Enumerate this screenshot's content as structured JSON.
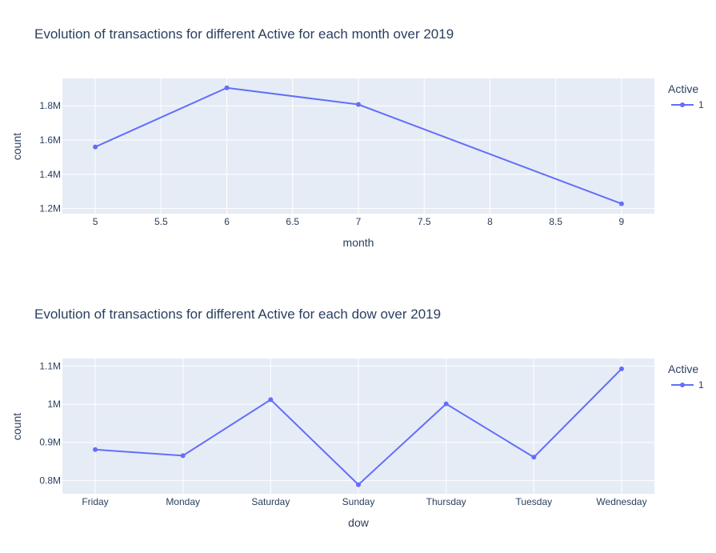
{
  "chart_data": [
    {
      "type": "line",
      "title": "Evolution of transactions for different Active for each month over 2019",
      "xlabel": "month",
      "ylabel": "count",
      "x": [
        5,
        6,
        7,
        9
      ],
      "xlim": [
        4.75,
        9.25
      ],
      "xticks": [
        5,
        5.5,
        6,
        6.5,
        7,
        7.5,
        8,
        8.5,
        9
      ],
      "xtick_labels": [
        "5",
        "5.5",
        "6",
        "6.5",
        "7",
        "7.5",
        "8",
        "8.5",
        "9"
      ],
      "ylim": [
        1170000,
        1960000
      ],
      "yticks": [
        1200000,
        1400000,
        1600000,
        1800000
      ],
      "ytick_labels": [
        "1.2M",
        "1.4M",
        "1.6M",
        "1.8M"
      ],
      "series": [
        {
          "name": "1",
          "color": "#636efa",
          "values": [
            1560000,
            1905000,
            1808000,
            1228000
          ]
        }
      ],
      "legend": {
        "title": "Active",
        "placement": "top-right"
      },
      "grid": true
    },
    {
      "type": "line",
      "title": "Evolution of transactions for different Active for each dow over 2019",
      "xlabel": "dow",
      "ylabel": "count",
      "categories": [
        "Friday",
        "Monday",
        "Saturday",
        "Sunday",
        "Thursday",
        "Tuesday",
        "Wednesday"
      ],
      "ylim": [
        0.765,
        1.12
      ],
      "ylim_units": "millions",
      "ylim_abs": [
        765000,
        1120000
      ],
      "yticks": [
        800000,
        900000,
        1000000,
        1100000
      ],
      "ytick_labels": [
        "0.8M",
        "0.9M",
        "1M",
        "1.1M"
      ],
      "series": [
        {
          "name": "1",
          "color": "#636efa",
          "values": [
            881000,
            865000,
            1012000,
            789000,
            1001000,
            861000,
            1093000
          ]
        }
      ],
      "legend": {
        "title": "Active",
        "placement": "top-right"
      },
      "grid": true
    }
  ]
}
